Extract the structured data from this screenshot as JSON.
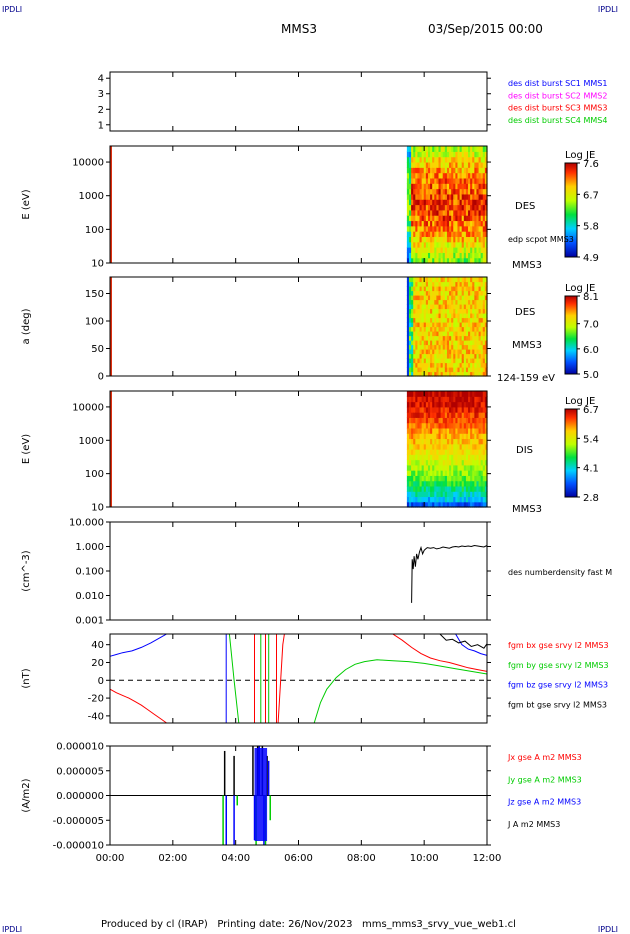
{
  "header": {
    "corner_left": "IPDLI",
    "corner_right": "IPDLI",
    "corner_bottom_left": "IPDLI",
    "corner_bottom_right": "IPDLI",
    "spacecraft": "MMS3",
    "date": "03/Sep/2015 00:00"
  },
  "footer": {
    "text": "Produced by cl (IRAP)   Printing date: 26/Nov/2023   mms_mms3_srvy_vue_web1.cl"
  },
  "time_axis": {
    "ticks": [
      "00:00",
      "02:00",
      "04:00",
      "06:00",
      "08:00",
      "10:00",
      "12:00"
    ]
  },
  "chart_data": [
    {
      "type": "line",
      "id": "burst",
      "ylim": [
        0.6,
        4.4
      ],
      "yticks": [
        "4",
        "3",
        "2",
        "1"
      ],
      "legend": [
        {
          "text": "des dist burst SC1 MMS1",
          "color": "#0000ff"
        },
        {
          "text": "des dist burst SC2 MMS2",
          "color": "#ff00ff"
        },
        {
          "text": "des dist burst SC3 MMS3",
          "color": "#ff0000"
        },
        {
          "text": "des dist burst SC4 MMS4",
          "color": "#00cc00"
        }
      ]
    },
    {
      "type": "heatmap",
      "id": "des-energy",
      "ylabel": "E (eV)",
      "yscale": "log",
      "ylim": [
        10,
        30000
      ],
      "yticks": [
        "10000",
        "1000",
        "100",
        "10"
      ],
      "labels": [
        "DES",
        "edp scpot MMS3",
        "MMS3"
      ],
      "colorbar": {
        "title": "Log JE",
        "ticks": [
          "7.6",
          "6.7",
          "5.8",
          "4.9"
        ],
        "range": [
          4.9,
          7.6
        ]
      },
      "data_start_hour": 9.45
    },
    {
      "type": "heatmap",
      "id": "des-pitch",
      "ylabel": "a (deg)",
      "ylim": [
        0,
        180
      ],
      "yticks": [
        "150",
        "100",
        "50",
        "0"
      ],
      "labels": [
        "DES",
        "MMS3",
        "124-159 eV"
      ],
      "colorbar": {
        "title": "Log JE",
        "ticks": [
          "8.1",
          "7.0",
          "6.0",
          "5.0"
        ],
        "range": [
          5.0,
          8.1
        ]
      },
      "data_start_hour": 9.45
    },
    {
      "type": "heatmap",
      "id": "dis-energy",
      "ylabel": "E (eV)",
      "yscale": "log",
      "ylim": [
        10,
        30000
      ],
      "yticks": [
        "10000",
        "1000",
        "100",
        "10"
      ],
      "labels": [
        "DIS",
        "MMS3"
      ],
      "colorbar": {
        "title": "Log JE",
        "ticks": [
          "6.7",
          "5.4",
          "4.1",
          "2.8"
        ],
        "range": [
          2.8,
          6.7
        ]
      },
      "data_start_hour": 9.45
    },
    {
      "type": "line",
      "id": "density",
      "ylabel": "(cm^-3)",
      "yscale": "log",
      "ylim": [
        0.001,
        10
      ],
      "yticks": [
        "10.000",
        "1.000",
        "0.100",
        "0.010",
        "0.001"
      ],
      "legend": [
        {
          "text": "des numberdensity fast M",
          "color": "#000000"
        }
      ],
      "series": [
        {
          "x": [
            9.6,
            9.62,
            9.65,
            9.68,
            9.72,
            9.76,
            9.8,
            9.85,
            9.9,
            9.95,
            10.0,
            10.05,
            10.1,
            10.2,
            10.3,
            10.4,
            10.5,
            10.6,
            10.7,
            10.8,
            10.9,
            11.0,
            11.1,
            11.2,
            11.3,
            11.4,
            11.5,
            11.6,
            11.7,
            11.8,
            11.9,
            12.0
          ],
          "y": [
            0.005,
            0.3,
            0.12,
            0.4,
            0.15,
            0.5,
            0.3,
            0.6,
            0.9,
            0.5,
            0.7,
            0.8,
            0.9,
            0.85,
            0.9,
            0.8,
            0.85,
            0.95,
            0.9,
            0.85,
            0.95,
            1.0,
            0.95,
            1.05,
            1.0,
            1.05,
            1.0,
            1.1,
            1.05,
            1.0,
            0.95,
            1.1
          ]
        }
      ]
    },
    {
      "type": "line",
      "id": "fgm",
      "ylabel": "(nT)",
      "ylim": [
        -48,
        52
      ],
      "yticks": [
        "40",
        "20",
        "0",
        "-20",
        "-40"
      ],
      "legend": [
        {
          "text": "fgm bx gse srvy l2 MMS3",
          "color": "#ff0000"
        },
        {
          "text": "fgm by gse srvy l2 MMS3",
          "color": "#00cc00"
        },
        {
          "text": "fgm bz gse srvy l2 MMS3",
          "color": "#0000ff"
        },
        {
          "text": "fgm bt gse srvy l2 MMS3",
          "color": "#000000"
        }
      ],
      "series": [
        {
          "name": "fgm bx gse srvy l2 MMS3",
          "color": "#ff0000",
          "segments": [
            {
              "x": [
                0.0,
                0.2,
                0.4,
                0.6,
                0.8,
                1.0,
                1.2,
                1.4,
                1.6,
                1.8
              ],
              "y": [
                -10,
                -14,
                -17,
                -20,
                -24,
                -28,
                -33,
                -38,
                -43,
                -50
              ]
            },
            {
              "x": [
                4.6,
                4.6
              ],
              "y": [
                52,
                -48
              ]
            },
            {
              "x": [
                4.95,
                4.95
              ],
              "y": [
                52,
                -48
              ]
            },
            {
              "x": [
                5.3,
                5.3
              ],
              "y": [
                52,
                -48
              ]
            },
            {
              "x": [
                5.35,
                5.5,
                5.55
              ],
              "y": [
                -48,
                40,
                52
              ]
            },
            {
              "x": [
                9.0,
                9.3,
                9.6,
                9.9,
                10.2,
                10.5,
                10.8,
                11.1,
                11.4,
                11.7,
                12.0
              ],
              "y": [
                52,
                45,
                37,
                30,
                25,
                22,
                20,
                17,
                14,
                12,
                10
              ]
            }
          ]
        },
        {
          "name": "fgm by gse srvy l2 MMS3",
          "color": "#00cc00",
          "segments": [
            {
              "x": [
                3.8,
                3.95,
                4.1
              ],
              "y": [
                52,
                0,
                -48
              ]
            },
            {
              "x": [
                4.8,
                4.8
              ],
              "y": [
                52,
                -48
              ]
            },
            {
              "x": [
                5.05,
                5.05
              ],
              "y": [
                52,
                -48
              ]
            },
            {
              "x": [
                6.5,
                6.7,
                6.9,
                7.2,
                7.5,
                7.8,
                8.1,
                8.5,
                9.0,
                9.5,
                10.0,
                10.5,
                11.0,
                11.5,
                12.0
              ],
              "y": [
                -48,
                -25,
                -10,
                3,
                12,
                18,
                21,
                23,
                22,
                21,
                19,
                16,
                13,
                10,
                7
              ]
            }
          ]
        },
        {
          "name": "fgm bz gse srvy l2 MMS3",
          "color": "#0000ff",
          "segments": [
            {
              "x": [
                0.0,
                0.2,
                0.4,
                0.7,
                1.0,
                1.3,
                1.6,
                1.8
              ],
              "y": [
                27,
                29,
                31,
                33,
                37,
                42,
                48,
                52
              ]
            },
            {
              "x": [
                3.7,
                3.7
              ],
              "y": [
                52,
                -48
              ]
            },
            {
              "x": [
                11.0,
                11.2,
                11.4,
                11.6,
                11.8,
                12.0
              ],
              "y": [
                52,
                40,
                35,
                33,
                30,
                28
              ]
            }
          ]
        },
        {
          "name": "fgm bt gse srvy l2 MMS3",
          "color": "#000000",
          "segments": [
            {
              "x": [
                10.5,
                10.7,
                10.9,
                11.1,
                11.3,
                11.5,
                11.7,
                11.9,
                12.0
              ],
              "y": [
                52,
                45,
                46,
                42,
                44,
                38,
                40,
                36,
                41
              ]
            }
          ]
        }
      ]
    },
    {
      "type": "line",
      "id": "current",
      "ylabel": "(A/m2)",
      "ylim": [
        -1e-05,
        1e-05
      ],
      "yticks": [
        "0.000010",
        "0.000005",
        "0.000000",
        "-0.000005",
        "-0.000010"
      ],
      "legend": [
        {
          "text": "Jx gse A m2 MMS3",
          "color": "#ff0000"
        },
        {
          "text": "Jy gse A m2 MMS3",
          "color": "#00cc00"
        },
        {
          "text": "Jz gse A m2 MMS3",
          "color": "#0000ff"
        },
        {
          "text": "J A m2 MMS3",
          "color": "#000000"
        }
      ],
      "series": [
        {
          "name": "J A m2 MMS3",
          "color": "#000000",
          "spikes": [
            [
              3.65,
              9e-06
            ],
            [
              3.95,
              8e-06
            ],
            [
              4.55,
              1e-05
            ],
            [
              4.7,
              1e-05
            ],
            [
              4.85,
              1e-05
            ],
            [
              5.0,
              8e-06
            ]
          ]
        },
        {
          "name": "Jz gse A m2 MMS3",
          "color": "#0000ff",
          "spikes": [
            [
              3.7,
              -1e-05
            ],
            [
              3.95,
              -1e-05
            ],
            [
              4.6,
              -9e-06
            ],
            [
              4.75,
              1e-05
            ],
            [
              4.9,
              -1e-05
            ],
            [
              5.05,
              7e-06
            ]
          ]
        },
        {
          "name": "Jy gse A m2 MMS3",
          "color": "#00cc00",
          "spikes": [
            [
              3.6,
              -1e-05
            ],
            [
              4.05,
              -2e-06
            ],
            [
              4.65,
              -1e-05
            ],
            [
              4.95,
              -1e-05
            ],
            [
              5.1,
              -5e-06
            ]
          ]
        }
      ]
    }
  ]
}
